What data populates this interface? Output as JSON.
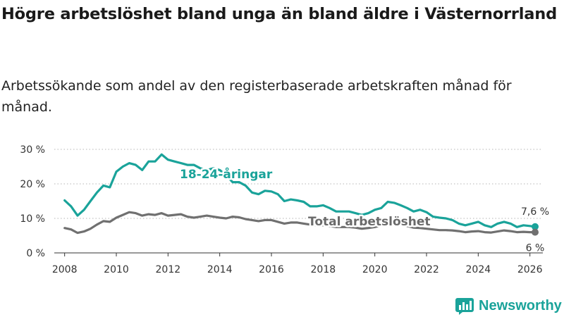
{
  "header": {
    "title": "Högre arbetslöshet bland unga än bland äldre i Västernorrland",
    "subtitle": "Arbetssökande som andel av den registerbaserade arbetskraften månad för månad."
  },
  "brand": {
    "name": "Newsworthy",
    "color": "#1aa39a"
  },
  "chart_data": {
    "type": "line",
    "title": "Högre arbetslöshet bland unga än bland äldre i Västernorrland",
    "subtitle": "Arbetssökande som andel av den registerbaserade arbetskraften månad för månad.",
    "xlabel": "",
    "ylabel": "",
    "xlim": [
      2007.6,
      2026.5
    ],
    "ylim": [
      0,
      30
    ],
    "x_ticks": [
      "2008",
      "2010",
      "2012",
      "2014",
      "2016",
      "2018",
      "2020",
      "2022",
      "2024",
      "2026"
    ],
    "y_ticks": [
      "0 %",
      "10 %",
      "20 %",
      "30 %"
    ],
    "grid": "horizontal-dotted",
    "series": [
      {
        "name": "18-24-åringar",
        "color": "#1aa39a",
        "end_label": "7,6 %",
        "points": [
          [
            2008.0,
            15.2
          ],
          [
            2008.25,
            13.5
          ],
          [
            2008.5,
            10.8
          ],
          [
            2008.75,
            12.5
          ],
          [
            2009.0,
            15.0
          ],
          [
            2009.25,
            17.5
          ],
          [
            2009.5,
            19.5
          ],
          [
            2009.75,
            19.0
          ],
          [
            2010.0,
            23.5
          ],
          [
            2010.25,
            25.0
          ],
          [
            2010.5,
            26.0
          ],
          [
            2010.75,
            25.5
          ],
          [
            2011.0,
            24.0
          ],
          [
            2011.25,
            26.5
          ],
          [
            2011.5,
            26.5
          ],
          [
            2011.75,
            28.5
          ],
          [
            2012.0,
            27.0
          ],
          [
            2012.25,
            26.5
          ],
          [
            2012.5,
            26.0
          ],
          [
            2012.75,
            25.5
          ],
          [
            2013.0,
            25.5
          ],
          [
            2013.25,
            24.5
          ],
          [
            2013.5,
            24.0
          ],
          [
            2013.75,
            24.5
          ],
          [
            2014.0,
            24.0
          ],
          [
            2014.25,
            22.5
          ],
          [
            2014.5,
            20.5
          ],
          [
            2014.75,
            20.5
          ],
          [
            2015.0,
            19.5
          ],
          [
            2015.25,
            17.5
          ],
          [
            2015.5,
            17.0
          ],
          [
            2015.75,
            18.0
          ],
          [
            2016.0,
            17.8
          ],
          [
            2016.25,
            17.0
          ],
          [
            2016.5,
            15.0
          ],
          [
            2016.75,
            15.5
          ],
          [
            2017.0,
            15.2
          ],
          [
            2017.25,
            14.8
          ],
          [
            2017.5,
            13.5
          ],
          [
            2017.75,
            13.5
          ],
          [
            2018.0,
            13.8
          ],
          [
            2018.25,
            13.0
          ],
          [
            2018.5,
            12.0
          ],
          [
            2018.75,
            12.0
          ],
          [
            2019.0,
            12.0
          ],
          [
            2019.25,
            11.5
          ],
          [
            2019.5,
            11.0
          ],
          [
            2019.75,
            11.5
          ],
          [
            2020.0,
            12.5
          ],
          [
            2020.25,
            13.0
          ],
          [
            2020.5,
            14.8
          ],
          [
            2020.75,
            14.5
          ],
          [
            2021.0,
            13.8
          ],
          [
            2021.25,
            13.0
          ],
          [
            2021.5,
            12.0
          ],
          [
            2021.75,
            12.5
          ],
          [
            2022.0,
            11.8
          ],
          [
            2022.25,
            10.5
          ],
          [
            2022.5,
            10.2
          ],
          [
            2022.75,
            10.0
          ],
          [
            2023.0,
            9.5
          ],
          [
            2023.25,
            8.5
          ],
          [
            2023.5,
            8.0
          ],
          [
            2023.75,
            8.5
          ],
          [
            2024.0,
            9.0
          ],
          [
            2024.25,
            8.0
          ],
          [
            2024.5,
            7.5
          ],
          [
            2024.75,
            8.5
          ],
          [
            2025.0,
            9.0
          ],
          [
            2025.25,
            8.5
          ],
          [
            2025.5,
            7.5
          ],
          [
            2025.75,
            8.0
          ],
          [
            2026.0,
            7.8
          ],
          [
            2026.2,
            7.6
          ]
        ]
      },
      {
        "name": "Total arbetslöshet",
        "color": "#707070",
        "end_label": "6 %",
        "points": [
          [
            2008.0,
            7.2
          ],
          [
            2008.25,
            6.8
          ],
          [
            2008.5,
            5.8
          ],
          [
            2008.75,
            6.2
          ],
          [
            2009.0,
            7.0
          ],
          [
            2009.25,
            8.2
          ],
          [
            2009.5,
            9.2
          ],
          [
            2009.75,
            9.0
          ],
          [
            2010.0,
            10.2
          ],
          [
            2010.25,
            11.0
          ],
          [
            2010.5,
            11.8
          ],
          [
            2010.75,
            11.5
          ],
          [
            2011.0,
            10.8
          ],
          [
            2011.25,
            11.2
          ],
          [
            2011.5,
            11.0
          ],
          [
            2011.75,
            11.5
          ],
          [
            2012.0,
            10.8
          ],
          [
            2012.25,
            11.0
          ],
          [
            2012.5,
            11.2
          ],
          [
            2012.75,
            10.5
          ],
          [
            2013.0,
            10.2
          ],
          [
            2013.25,
            10.5
          ],
          [
            2013.5,
            10.8
          ],
          [
            2013.75,
            10.5
          ],
          [
            2014.0,
            10.2
          ],
          [
            2014.25,
            10.0
          ],
          [
            2014.5,
            10.5
          ],
          [
            2014.75,
            10.3
          ],
          [
            2015.0,
            9.8
          ],
          [
            2015.25,
            9.5
          ],
          [
            2015.5,
            9.2
          ],
          [
            2015.75,
            9.5
          ],
          [
            2016.0,
            9.5
          ],
          [
            2016.25,
            9.0
          ],
          [
            2016.5,
            8.5
          ],
          [
            2016.75,
            8.8
          ],
          [
            2017.0,
            8.8
          ],
          [
            2017.25,
            8.5
          ],
          [
            2017.5,
            8.2
          ],
          [
            2017.75,
            8.0
          ],
          [
            2018.0,
            8.0
          ],
          [
            2018.25,
            7.8
          ],
          [
            2018.5,
            7.5
          ],
          [
            2018.75,
            7.5
          ],
          [
            2019.0,
            7.5
          ],
          [
            2019.25,
            7.3
          ],
          [
            2019.5,
            7.0
          ],
          [
            2019.75,
            7.2
          ],
          [
            2020.0,
            7.5
          ],
          [
            2020.25,
            8.0
          ],
          [
            2020.5,
            8.8
          ],
          [
            2020.75,
            8.5
          ],
          [
            2021.0,
            8.2
          ],
          [
            2021.25,
            7.8
          ],
          [
            2021.5,
            7.3
          ],
          [
            2021.75,
            7.2
          ],
          [
            2022.0,
            7.0
          ],
          [
            2022.25,
            6.8
          ],
          [
            2022.5,
            6.6
          ],
          [
            2022.75,
            6.6
          ],
          [
            2023.0,
            6.5
          ],
          [
            2023.25,
            6.3
          ],
          [
            2023.5,
            6.0
          ],
          [
            2023.75,
            6.2
          ],
          [
            2024.0,
            6.3
          ],
          [
            2024.25,
            6.0
          ],
          [
            2024.5,
            5.9
          ],
          [
            2024.75,
            6.2
          ],
          [
            2025.0,
            6.5
          ],
          [
            2025.25,
            6.3
          ],
          [
            2025.5,
            6.0
          ],
          [
            2025.75,
            6.1
          ],
          [
            2026.0,
            6.0
          ],
          [
            2026.2,
            6.0
          ]
        ]
      }
    ]
  }
}
